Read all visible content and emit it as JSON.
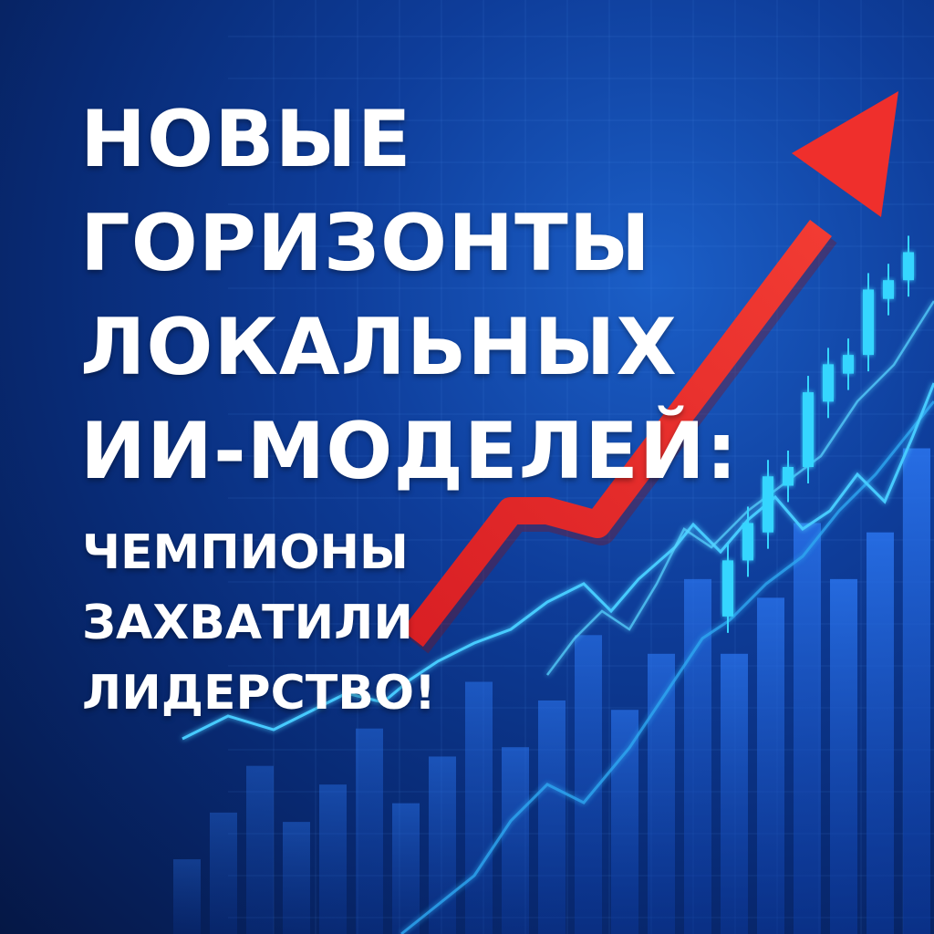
{
  "headline": {
    "line1": "НОВЫЕ",
    "line2": "ГОРИЗОНТЫ",
    "line3": "ЛОКАЛЬНЫХ",
    "line4": "ИИ-МОДЕЛЕЙ:"
  },
  "subline": {
    "line1": "ЧЕМПИОНЫ",
    "line2": "ЗАХВАТИЛИ",
    "line3": "ЛИДЕРСТВО!"
  },
  "colors": {
    "arrow": "#e8262a",
    "line": "#3fc3ff",
    "candle": "#35d6ff",
    "bars": "#1f63d8"
  },
  "decor": {
    "bars": [
      0.08,
      0.13,
      0.18,
      0.12,
      0.16,
      0.22,
      0.14,
      0.19,
      0.27,
      0.2,
      0.25,
      0.32,
      0.24,
      0.3,
      0.38,
      0.3,
      0.36,
      0.44,
      0.38,
      0.43,
      0.52
    ],
    "candles": [
      {
        "o": 0.34,
        "c": 0.4
      },
      {
        "o": 0.4,
        "c": 0.44
      },
      {
        "o": 0.43,
        "c": 0.49
      },
      {
        "o": 0.48,
        "c": 0.5
      },
      {
        "o": 0.5,
        "c": 0.58
      },
      {
        "o": 0.57,
        "c": 0.61
      },
      {
        "o": 0.6,
        "c": 0.62
      },
      {
        "o": 0.62,
        "c": 0.69
      },
      {
        "o": 0.68,
        "c": 0.7
      },
      {
        "o": 0.7,
        "c": 0.73
      }
    ]
  }
}
